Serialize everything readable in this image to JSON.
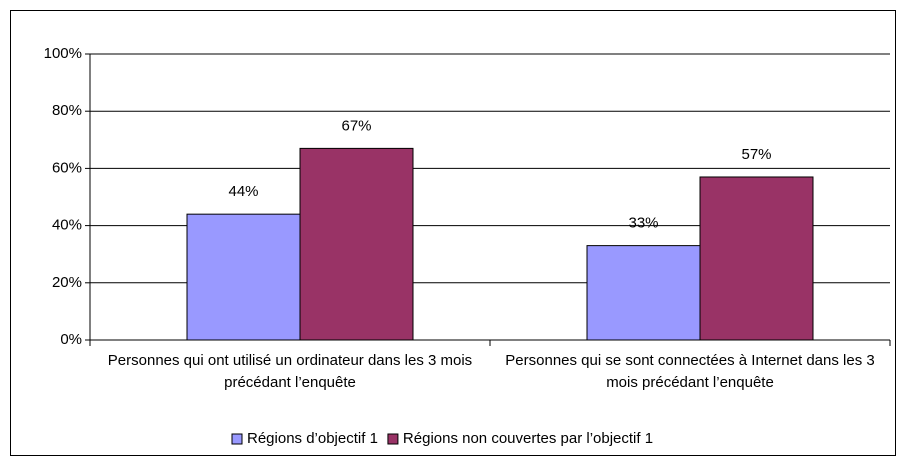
{
  "chart_data": {
    "type": "bar",
    "categories": [
      "Personnes qui ont utilisé un ordinateur dans les 3 mois précédant l’enquête",
      "Personnes qui se sont connectées à Internet dans les 3 mois précédant l’enquête"
    ],
    "series": [
      {
        "name": "Régions d’objectif 1",
        "color": "#9999ff",
        "values": [
          44,
          33
        ],
        "value_labels": [
          "44%",
          "33%"
        ]
      },
      {
        "name": "Régions non couvertes par l’objectif 1",
        "color": "#993366",
        "values": [
          67,
          57
        ],
        "value_labels": [
          "67%",
          "57%"
        ]
      }
    ],
    "ylim": [
      0,
      100
    ],
    "yticks": [
      {
        "value": 0,
        "label": "0%"
      },
      {
        "value": 20,
        "label": "20%"
      },
      {
        "value": 40,
        "label": "40%"
      },
      {
        "value": 60,
        "label": "60%"
      },
      {
        "value": 80,
        "label": "80%"
      },
      {
        "value": 100,
        "label": "100%"
      }
    ],
    "grid": true,
    "legend": "bottom"
  }
}
